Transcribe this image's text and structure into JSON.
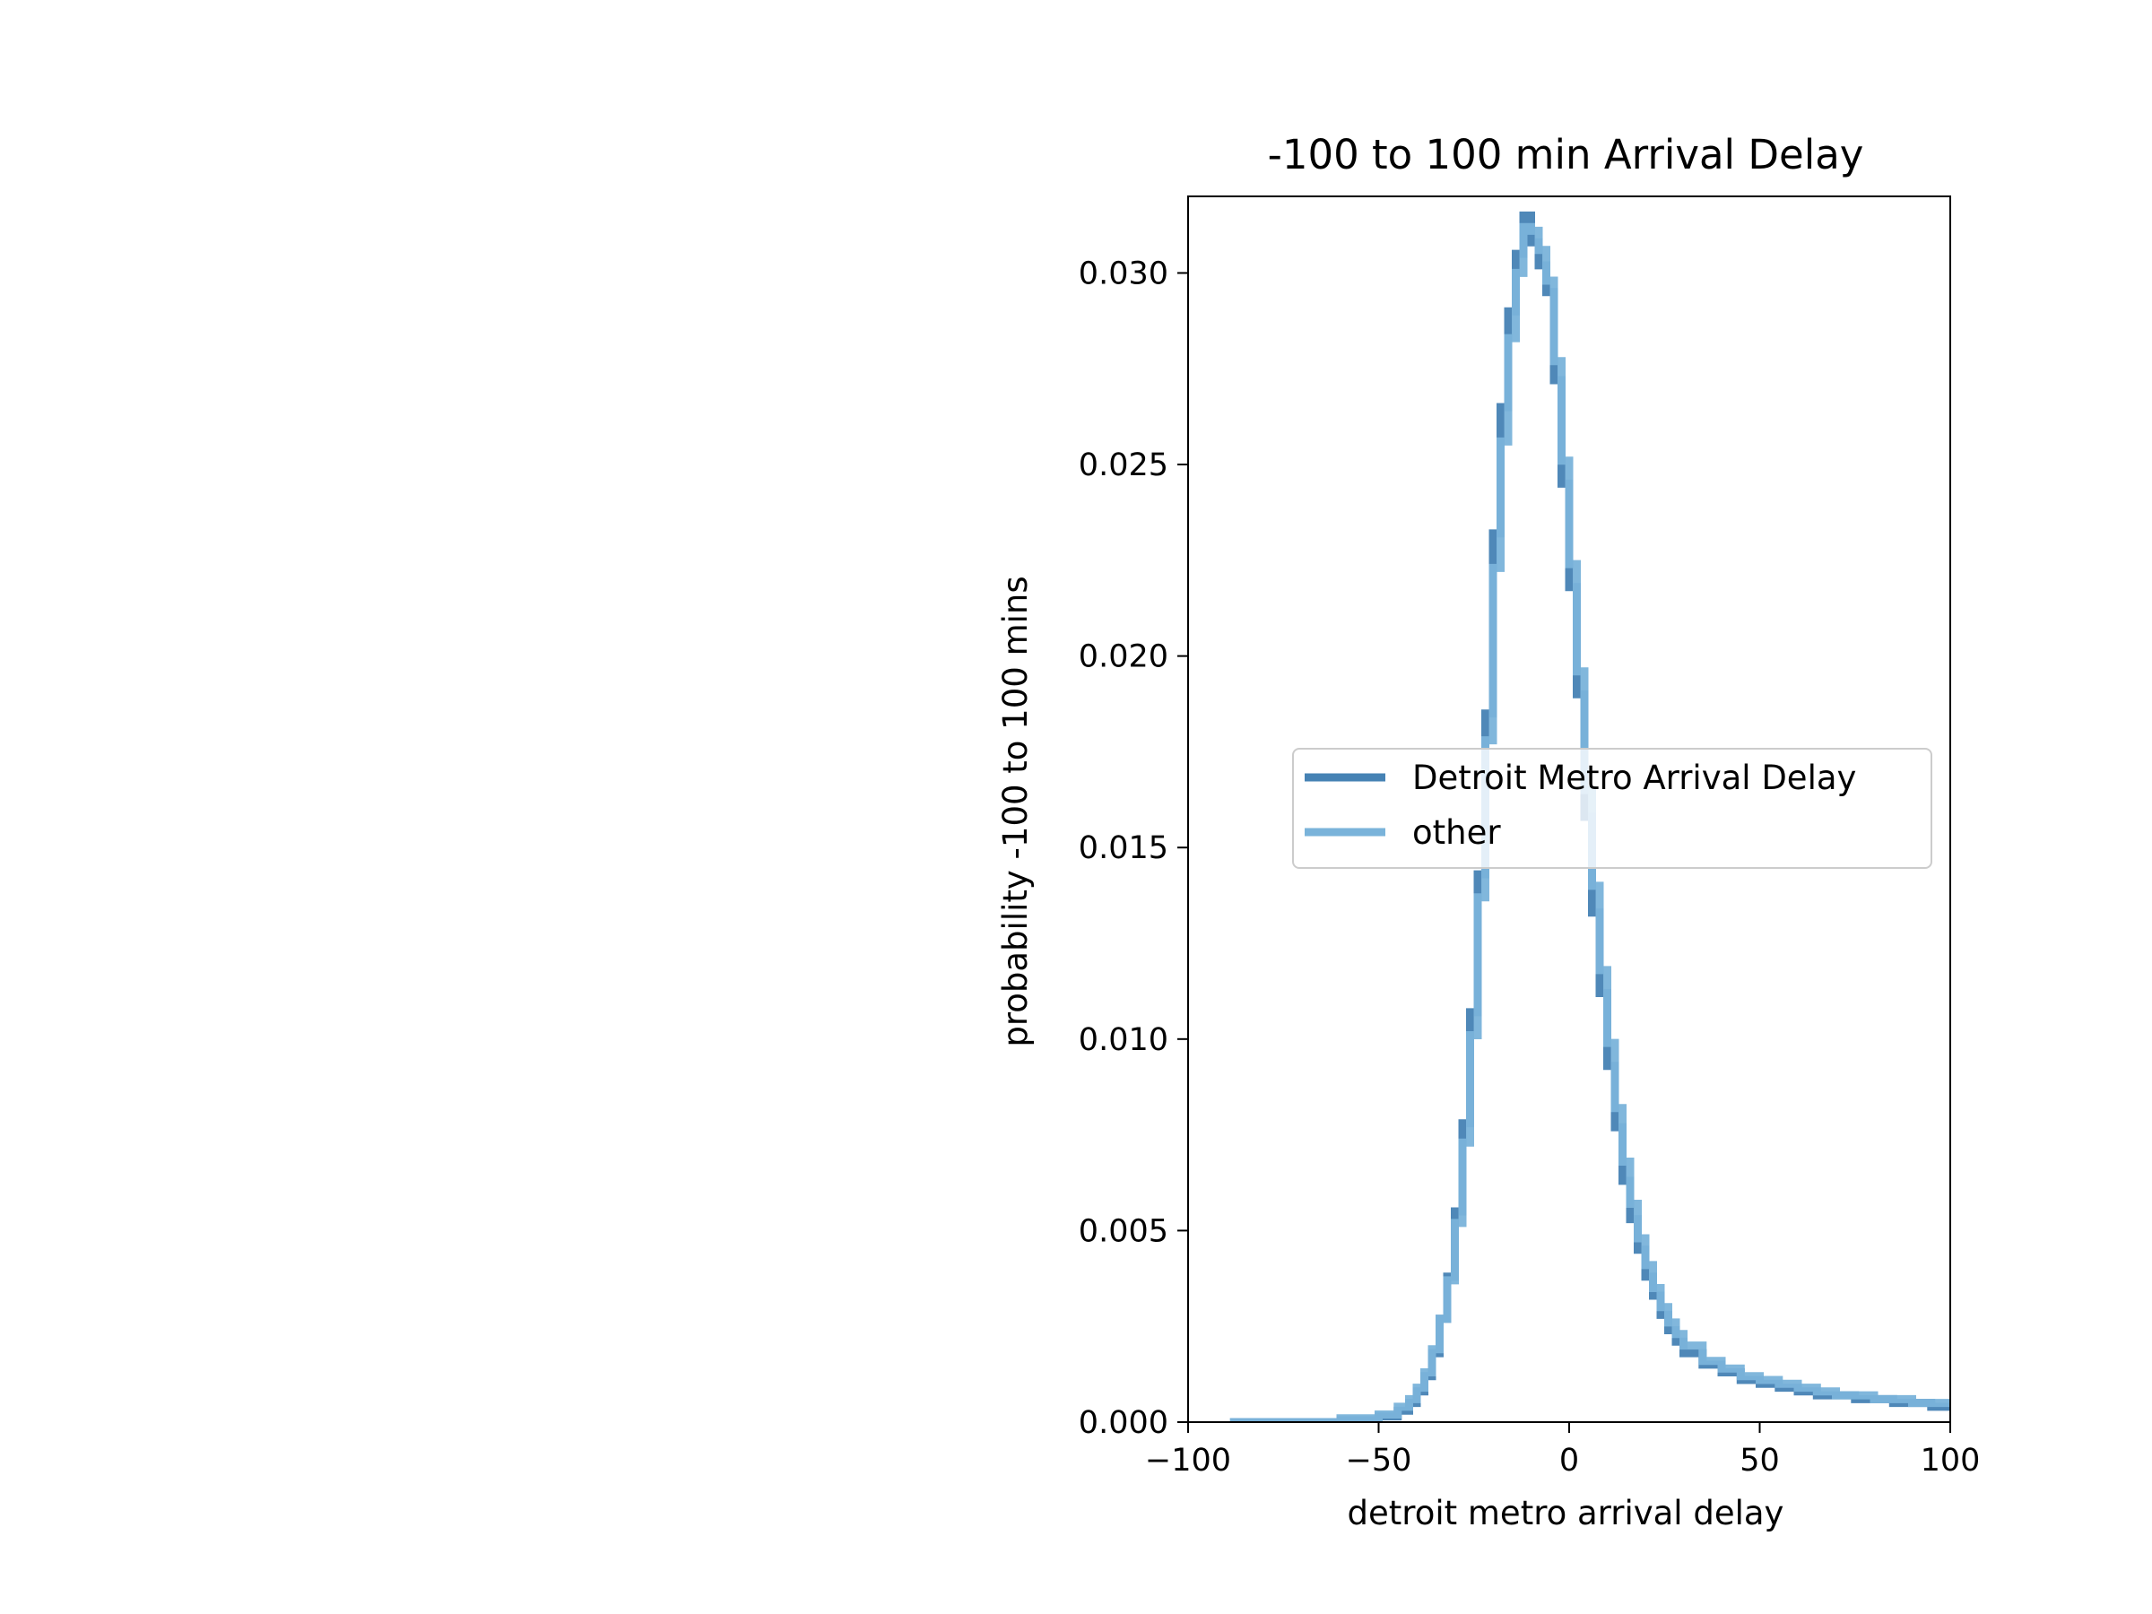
{
  "chart_data": {
    "type": "line",
    "title": "-100 to 100 min Arrival Delay",
    "xlabel": "detroit metro arrival delay",
    "ylabel": "probability -100 to 100 mins",
    "xlim": [
      -100,
      100
    ],
    "ylim": [
      0,
      0.032
    ],
    "xticks": [
      -100,
      -50,
      0,
      50,
      100
    ],
    "xtick_labels": [
      "−100",
      "−50",
      "0",
      "50",
      "100"
    ],
    "yticks": [
      0.0,
      0.005,
      0.01,
      0.015,
      0.02,
      0.025,
      0.03
    ],
    "ytick_labels": [
      "0.000",
      "0.005",
      "0.010",
      "0.015",
      "0.020",
      "0.025",
      "0.030"
    ],
    "grid": false,
    "legend_position": "center-right",
    "step": true,
    "series": [
      {
        "name": "Detroit Metro Arrival Delay",
        "color": "#4682b4",
        "x": [
          -89,
          -60,
          -50,
          -45,
          -42,
          -40,
          -38,
          -36,
          -34,
          -32,
          -30,
          -28,
          -26,
          -24,
          -22,
          -20,
          -18,
          -16,
          -14,
          -12,
          -10,
          -8,
          -6,
          -4,
          -2,
          0,
          2,
          4,
          6,
          8,
          10,
          12,
          14,
          16,
          18,
          20,
          22,
          24,
          26,
          28,
          30,
          35,
          40,
          45,
          50,
          55,
          60,
          65,
          70,
          75,
          80,
          85,
          90,
          95,
          100
        ],
        "y": [
          0.0,
          5e-05,
          0.00015,
          0.0003,
          0.0005,
          0.0008,
          0.0012,
          0.0018,
          0.0027,
          0.0038,
          0.0055,
          0.0078,
          0.0107,
          0.0143,
          0.0185,
          0.0232,
          0.0265,
          0.029,
          0.0305,
          0.0315,
          0.0308,
          0.0302,
          0.0295,
          0.0272,
          0.0245,
          0.0218,
          0.019,
          0.0158,
          0.0133,
          0.0112,
          0.0093,
          0.0077,
          0.0063,
          0.0053,
          0.0045,
          0.0038,
          0.0033,
          0.0028,
          0.0024,
          0.0021,
          0.0018,
          0.0015,
          0.0013,
          0.0011,
          0.001,
          0.0009,
          0.0008,
          0.0007,
          0.0007,
          0.0006,
          0.0006,
          0.0005,
          0.0005,
          0.0004,
          0.0004
        ]
      },
      {
        "name": "other",
        "color": "#7ab3da",
        "x": [
          -89,
          -60,
          -50,
          -45,
          -42,
          -40,
          -38,
          -36,
          -34,
          -32,
          -30,
          -28,
          -26,
          -24,
          -22,
          -20,
          -18,
          -16,
          -14,
          -12,
          -10,
          -8,
          -6,
          -4,
          -2,
          0,
          2,
          4,
          6,
          8,
          10,
          12,
          14,
          16,
          18,
          20,
          22,
          24,
          26,
          28,
          30,
          35,
          40,
          45,
          50,
          55,
          60,
          65,
          70,
          75,
          80,
          85,
          90,
          95,
          100
        ],
        "y": [
          0.0,
          0.0001,
          0.0002,
          0.0004,
          0.0006,
          0.0009,
          0.0013,
          0.0019,
          0.0027,
          0.0037,
          0.0052,
          0.0073,
          0.0101,
          0.0137,
          0.0178,
          0.0223,
          0.0256,
          0.0283,
          0.03,
          0.0312,
          0.0311,
          0.0306,
          0.0298,
          0.0277,
          0.0251,
          0.0224,
          0.0196,
          0.0165,
          0.014,
          0.0118,
          0.0099,
          0.0082,
          0.0068,
          0.0057,
          0.0048,
          0.0041,
          0.0035,
          0.003,
          0.0026,
          0.0023,
          0.002,
          0.0016,
          0.0014,
          0.0012,
          0.0011,
          0.001,
          0.0009,
          0.0008,
          0.0007,
          0.0007,
          0.0006,
          0.0006,
          0.0005,
          0.0005,
          0.0004
        ]
      }
    ]
  }
}
